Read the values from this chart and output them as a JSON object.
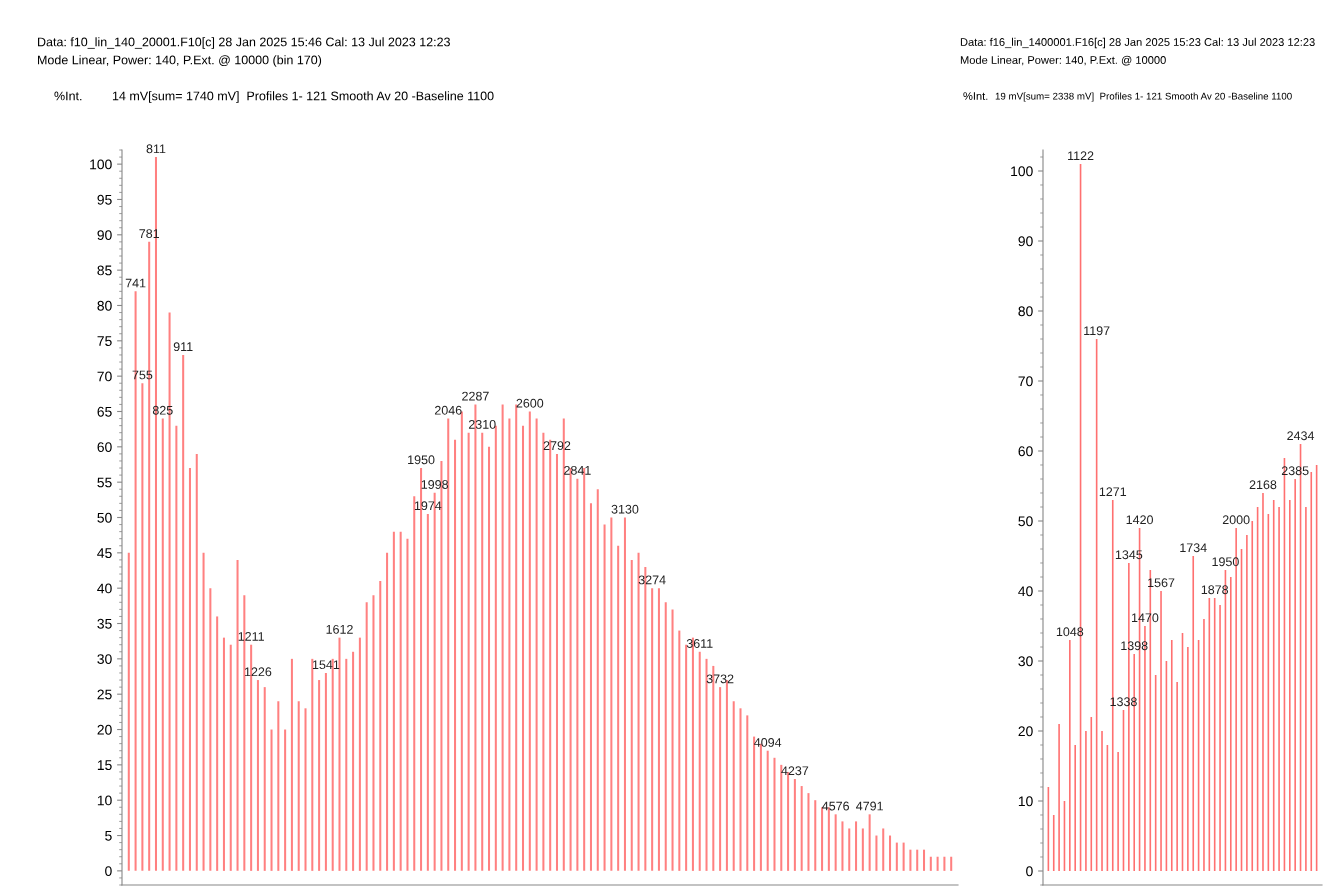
{
  "chart_data": [
    {
      "type": "bar",
      "ylabel": "%Int.",
      "tick_labels": "y",
      "color": "#ff8080",
      "annotations": [
        "Data: f10_lin_140_20001.F10[c] 28 Jan 2025 15:46 Cal: 13 Jul 2023 12:23",
        "Mode Linear, Power: 140, P.Ext. @ 10000 (bin 170)",
        "14 mV[sum= 1740 mV]  Profiles 1- 121 Smooth Av 20 -Baseline 1100"
      ],
      "categories": [
        null,
        "741",
        "755",
        "781",
        "811",
        "825",
        null,
        null,
        "911",
        null,
        null,
        null,
        null,
        null,
        null,
        null,
        null,
        null,
        "1211",
        "1226",
        null,
        null,
        null,
        null,
        null,
        null,
        null,
        null,
        null,
        "1541",
        null,
        "1612",
        null,
        null,
        null,
        null,
        null,
        null,
        null,
        null,
        null,
        null,
        null,
        "1950",
        "1974",
        "1998",
        null,
        "2046",
        null,
        null,
        null,
        "2287",
        "2310",
        null,
        null,
        null,
        null,
        null,
        null,
        "2600",
        null,
        null,
        null,
        "2792",
        null,
        null,
        "2841",
        null,
        null,
        null,
        null,
        null,
        null,
        "3130",
        null,
        null,
        null,
        "3274",
        null,
        null,
        null,
        null,
        null,
        null,
        "3611",
        null,
        null,
        "3732",
        null,
        null,
        null,
        null,
        null,
        null,
        "4094",
        null,
        null,
        null,
        "4237",
        null,
        null,
        null,
        null,
        null,
        "4576",
        null,
        null,
        null,
        null,
        "4791",
        null,
        null,
        null,
        null,
        null,
        null,
        null,
        null,
        null,
        null,
        null,
        null
      ],
      "values": [
        45,
        82,
        69,
        89,
        101,
        64,
        79,
        63,
        73,
        57,
        59,
        45,
        40,
        36,
        33,
        32,
        44,
        39,
        32,
        27,
        26,
        20,
        24,
        20,
        30,
        24,
        23,
        30,
        27,
        28,
        30,
        33,
        30,
        31,
        33,
        38,
        39,
        41,
        45,
        48,
        48,
        47,
        53,
        57,
        50.5,
        53.5,
        58,
        64,
        61,
        65,
        62,
        66,
        62,
        60,
        63,
        66,
        64,
        66,
        63,
        65,
        64,
        62,
        61,
        59,
        64,
        57,
        55.5,
        57,
        52,
        54,
        49,
        50,
        46,
        50,
        44,
        45,
        43,
        40,
        40,
        38,
        37,
        34,
        32,
        33,
        31,
        30,
        29,
        26,
        27,
        24,
        23,
        22,
        19,
        18,
        17,
        16,
        15,
        14,
        13,
        12,
        11,
        10,
        9,
        9,
        8,
        7,
        6,
        7,
        6,
        8,
        5,
        6,
        5,
        4,
        4,
        3,
        3,
        3,
        2,
        2,
        2,
        2
      ],
      "ylim": [
        -2,
        102
      ],
      "yticks": [
        0,
        5,
        10,
        15,
        20,
        25,
        30,
        35,
        40,
        45,
        50,
        55,
        60,
        65,
        70,
        75,
        80,
        85,
        90,
        95,
        100
      ]
    },
    {
      "type": "bar",
      "ylabel": "%Int.",
      "tick_labels": "y",
      "color": "#ff7070",
      "annotations": [
        "Data: f16_lin_1400001.F16[c] 28 Jan 2025 15:23 Cal: 13 Jul 2023 12:23",
        "Mode Linear, Power: 140, P.Ext. @ 10000",
        "19 mV[sum= 2338 mV]  Profiles 1- 121 Smooth Av 20 -Baseline 1100"
      ],
      "categories": [
        null,
        null,
        null,
        null,
        "1048",
        null,
        "1122",
        null,
        null,
        "1197",
        null,
        null,
        "1271",
        null,
        "1338",
        "1345",
        "1398",
        "1420",
        "1470",
        null,
        null,
        "1567",
        null,
        null,
        null,
        null,
        null,
        "1734",
        null,
        null,
        null,
        "1878",
        null,
        "1950",
        null,
        "2000",
        null,
        null,
        null,
        null,
        "2168",
        null,
        null,
        null,
        null,
        null,
        "2385",
        "2434",
        null,
        null,
        null
      ],
      "values": [
        12,
        8,
        21,
        10,
        33,
        18,
        101,
        20,
        22,
        76,
        20,
        18,
        53,
        17,
        23,
        44,
        31,
        49,
        35,
        43,
        28,
        40,
        30,
        33,
        27,
        34,
        32,
        45,
        33,
        36,
        39,
        39,
        38,
        43,
        42,
        49,
        46,
        48,
        50,
        52,
        54,
        51,
        53,
        52,
        59,
        53,
        56,
        61,
        52,
        57,
        58
      ],
      "ylim": [
        -2,
        103
      ],
      "yticks": [
        0,
        10,
        20,
        30,
        40,
        50,
        60,
        70,
        80,
        90,
        100
      ]
    }
  ]
}
